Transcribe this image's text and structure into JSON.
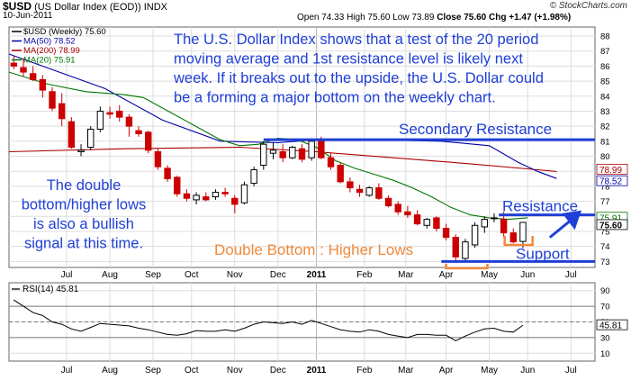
{
  "header": {
    "symbol": "$USD",
    "name": "(US Dollar Index (EOD))",
    "exchange": "INDX",
    "date": "10-Jun-2011",
    "open_label": "Open",
    "open": "74.33",
    "high_label": "High",
    "high": "75.60",
    "low_label": "Low",
    "low": "73.89",
    "close_label": "Close",
    "close": "75.60",
    "chg_label": "Chg",
    "chg": "+1.47 (+1.98%)",
    "brand": "© StockCharts.com"
  },
  "colors": {
    "up": "#000000",
    "down": "#cc0000",
    "ma50": "#0000aa",
    "ma200": "#aa0000",
    "ma20": "#007700",
    "annotation": "#1f3fd6",
    "orange": "#f08a3c",
    "grid": "#dddddd"
  },
  "chart_data": [
    {
      "type": "candlestick",
      "title": "",
      "legend": [
        {
          "key": "price",
          "label": "$USD (Weekly) 75.60"
        },
        {
          "key": "ma50",
          "label": "MA(50) 78.52"
        },
        {
          "key": "ma200",
          "label": "MA(200) 78.99"
        },
        {
          "key": "ma20",
          "label": "MA(20) 75.91"
        }
      ],
      "legend_position": "top-left",
      "ylim": [
        72.6,
        88.6
      ],
      "yticks": [
        73,
        74,
        75,
        76,
        77,
        78,
        79,
        80,
        81,
        82,
        83,
        84,
        85,
        86,
        87,
        88
      ],
      "x_label_texts": [
        "Jul",
        "Aug",
        "Sep",
        "Oct",
        "Nov",
        "Dec",
        "2011",
        "Feb",
        "Mar",
        "Apr",
        "May",
        "Jun",
        "Jul"
      ],
      "x_label_weeks": [
        6,
        10.5,
        15,
        19,
        23.5,
        28,
        32,
        37,
        41.3,
        45.5,
        50,
        54,
        58.5
      ],
      "x_range": [
        0,
        61
      ],
      "value_tags": [
        {
          "value": 78.99,
          "label": "78.99",
          "style": "ma200"
        },
        {
          "value": 78.52,
          "label": "78.52",
          "style": "ma50"
        },
        {
          "value": 75.91,
          "label": "75.91",
          "style": "ma20"
        },
        {
          "value": 75.6,
          "label": "75.60",
          "style": "last"
        }
      ],
      "candles": [
        [
          86.2,
          86.7,
          85.8,
          86.0
        ],
        [
          85.9,
          86.5,
          85.3,
          85.6
        ],
        [
          85.5,
          86.0,
          85.0,
          85.1
        ],
        [
          85.1,
          85.4,
          83.9,
          84.4
        ],
        [
          84.3,
          84.6,
          83.0,
          83.2
        ],
        [
          83.5,
          84.2,
          82.0,
          82.5
        ],
        [
          82.3,
          82.6,
          80.5,
          80.6
        ],
        [
          80.3,
          80.8,
          80.0,
          80.4
        ],
        [
          80.6,
          82.0,
          80.4,
          81.8
        ],
        [
          81.8,
          83.3,
          81.6,
          83.0
        ],
        [
          82.9,
          83.3,
          82.5,
          82.8
        ],
        [
          83.0,
          83.4,
          82.3,
          82.6
        ],
        [
          82.6,
          82.8,
          81.3,
          82.0
        ],
        [
          81.7,
          82.0,
          81.3,
          81.5
        ],
        [
          81.6,
          81.7,
          80.2,
          80.4
        ],
        [
          80.3,
          80.5,
          79.1,
          79.3
        ],
        [
          79.2,
          79.4,
          78.3,
          78.5
        ],
        [
          78.6,
          78.7,
          77.3,
          77.5
        ],
        [
          77.5,
          77.8,
          77.0,
          77.2
        ],
        [
          77.1,
          77.6,
          76.8,
          77.4
        ],
        [
          77.3,
          77.6,
          77.0,
          77.1
        ],
        [
          77.3,
          77.8,
          77.1,
          77.6
        ],
        [
          77.6,
          77.9,
          77.3,
          77.5
        ],
        [
          77.2,
          77.4,
          76.2,
          76.8
        ],
        [
          76.9,
          78.3,
          76.8,
          78.1
        ],
        [
          78.2,
          79.3,
          78.0,
          79.1
        ],
        [
          79.4,
          81.0,
          79.1,
          80.8
        ],
        [
          80.2,
          80.9,
          79.8,
          80.4
        ],
        [
          80.3,
          80.8,
          79.6,
          79.9
        ],
        [
          79.9,
          80.7,
          79.8,
          80.6
        ],
        [
          80.5,
          80.8,
          79.6,
          79.8
        ],
        [
          79.9,
          81.2,
          79.7,
          81.0
        ],
        [
          81.0,
          81.3,
          79.8,
          79.9
        ],
        [
          79.9,
          80.2,
          79.1,
          79.3
        ],
        [
          79.4,
          79.6,
          78.2,
          78.3
        ],
        [
          78.3,
          78.6,
          77.6,
          77.9
        ],
        [
          77.8,
          78.1,
          77.3,
          77.6
        ],
        [
          77.4,
          78.0,
          77.3,
          77.9
        ],
        [
          77.9,
          78.2,
          77.1,
          77.2
        ],
        [
          77.2,
          77.4,
          76.6,
          76.7
        ],
        [
          76.8,
          77.0,
          76.1,
          76.3
        ],
        [
          76.3,
          76.7,
          75.9,
          76.1
        ],
        [
          76.1,
          76.4,
          75.4,
          75.5
        ],
        [
          75.4,
          75.9,
          75.2,
          75.8
        ],
        [
          75.9,
          76.0,
          75.0,
          75.2
        ],
        [
          75.2,
          75.5,
          74.4,
          74.6
        ],
        [
          74.6,
          74.8,
          73.0,
          73.3
        ],
        [
          73.2,
          74.5,
          73.0,
          74.3
        ],
        [
          74.1,
          75.6,
          73.9,
          75.4
        ],
        [
          75.3,
          76.0,
          74.9,
          75.8
        ],
        [
          75.9,
          76.2,
          75.6,
          75.9
        ],
        [
          75.8,
          76.3,
          74.6,
          74.9
        ],
        [
          74.9,
          75.2,
          74.2,
          74.3
        ],
        [
          74.33,
          75.6,
          73.89,
          75.6
        ]
      ],
      "ma50": [
        [
          0,
          86.8
        ],
        [
          10,
          84.5
        ],
        [
          16,
          82.4
        ],
        [
          22,
          81.0
        ],
        [
          28,
          80.9
        ],
        [
          32,
          81.1
        ],
        [
          38,
          81.1
        ],
        [
          45,
          81.0
        ],
        [
          50,
          80.7
        ],
        [
          53,
          79.6
        ],
        [
          55,
          79.0
        ],
        [
          57,
          78.52
        ]
      ],
      "ma200": [
        [
          0,
          80.3
        ],
        [
          12,
          80.5
        ],
        [
          24,
          80.6
        ],
        [
          32,
          80.3
        ],
        [
          40,
          79.9
        ],
        [
          48,
          79.5
        ],
        [
          55,
          79.1
        ],
        [
          57,
          78.99
        ]
      ],
      "ma20": [
        [
          0,
          85.6
        ],
        [
          4,
          84.8
        ],
        [
          8,
          84.3
        ],
        [
          12,
          84.1
        ],
        [
          14,
          83.9
        ],
        [
          16,
          83.2
        ],
        [
          18,
          82.5
        ],
        [
          20,
          81.8
        ],
        [
          22,
          81.1
        ],
        [
          24,
          80.7
        ],
        [
          26,
          80.8
        ],
        [
          28,
          81.2
        ],
        [
          30,
          81.1
        ],
        [
          32,
          80.6
        ],
        [
          34,
          79.7
        ],
        [
          36,
          79.2
        ],
        [
          38,
          78.8
        ],
        [
          40,
          78.4
        ],
        [
          42,
          77.9
        ],
        [
          44,
          77.3
        ],
        [
          46,
          76.6
        ],
        [
          48,
          76.1
        ],
        [
          50,
          75.9
        ],
        [
          52,
          75.8
        ],
        [
          54,
          75.91
        ]
      ],
      "lines": [
        {
          "label": "Secondary Resistance",
          "value": 81.1,
          "x_from": 26.5,
          "x_to": 61
        },
        {
          "label": "Resistance",
          "value": 76.1,
          "x_from": 51,
          "x_to": 61
        },
        {
          "label": "Support",
          "value": 73.0,
          "x_from": 45,
          "x_to": 61
        }
      ],
      "annotations": {
        "main": [
          "The U.S. Dollar Index shows that a test of the 20 period",
          "moving average and 1st resistance level is likely next",
          "week. If it breaks out to the upside, the U.S. Dollar could",
          "be a forming a major bottom on  the weekly chart."
        ],
        "left": [
          "The double",
          "bottom/higher lows",
          "is also a bullish",
          "signal at this time."
        ],
        "double_bottom": "Double Bottom : Higher Lows"
      }
    },
    {
      "type": "line",
      "title": "",
      "legend_label": "RSI(14) 45.81",
      "legend_position": "top-left",
      "ylim": [
        0,
        100
      ],
      "yticks": [
        10,
        30,
        50,
        70,
        90
      ],
      "reference_lines": [
        30,
        70
      ],
      "last_label": "45.81",
      "x_label_texts": [
        "Jul",
        "Aug",
        "Sep",
        "Oct",
        "Nov",
        "Dec",
        "2011",
        "Feb",
        "Mar",
        "Apr",
        "May",
        "Jun",
        "Jul"
      ],
      "x_label_weeks": [
        6,
        10.5,
        15,
        19,
        23.5,
        28,
        32,
        37,
        41.3,
        45.5,
        50,
        54,
        58.5
      ],
      "x_range": [
        0,
        61
      ],
      "values": [
        78,
        70,
        62,
        58,
        50,
        47,
        41,
        38,
        43,
        48,
        47,
        46,
        45,
        42,
        40,
        37,
        34,
        33,
        35,
        39,
        38,
        38,
        40,
        38,
        42,
        47,
        50,
        49,
        48,
        50,
        47,
        52,
        48,
        44,
        40,
        38,
        37,
        40,
        38,
        34,
        32,
        30,
        34,
        34,
        33,
        33,
        26,
        32,
        37,
        41,
        42,
        38,
        37,
        45.81
      ]
    }
  ]
}
